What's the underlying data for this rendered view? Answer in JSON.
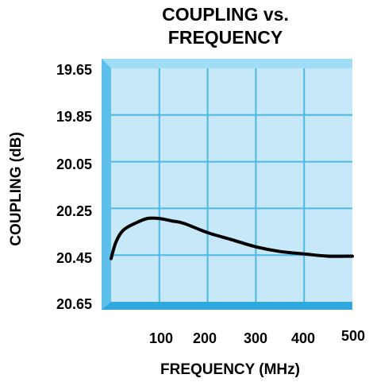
{
  "chart_data": {
    "type": "line",
    "title_line1": "COUPLING vs.",
    "title_line2": "FREQUENCY",
    "xlabel": "FREQUENCY (MHz)",
    "ylabel": "COUPLING (dB)",
    "x_ticks": [
      "100",
      "200",
      "300",
      "400",
      "500"
    ],
    "y_ticks": [
      "19.65",
      "19.85",
      "20.05",
      "20.25",
      "20.45",
      "20.65"
    ],
    "xlim": [
      0,
      500
    ],
    "ylim": [
      19.65,
      20.65
    ],
    "y_inverted": true,
    "grid": true,
    "series": [
      {
        "x": [
          0,
          10,
          25,
          50,
          75,
          100,
          125,
          150,
          200,
          250,
          300,
          350,
          400,
          450,
          500
        ],
        "values": [
          20.45,
          20.38,
          20.33,
          20.3,
          20.28,
          20.28,
          20.29,
          20.3,
          20.34,
          20.37,
          20.4,
          20.42,
          20.43,
          20.44,
          20.44
        ]
      }
    ],
    "colors": {
      "plot_bg": "#c6e8f8",
      "frame_light": "#7fcff0",
      "frame_dark": "#2fa8dd",
      "grid": "#4bb8e6",
      "line": "#000000"
    }
  }
}
